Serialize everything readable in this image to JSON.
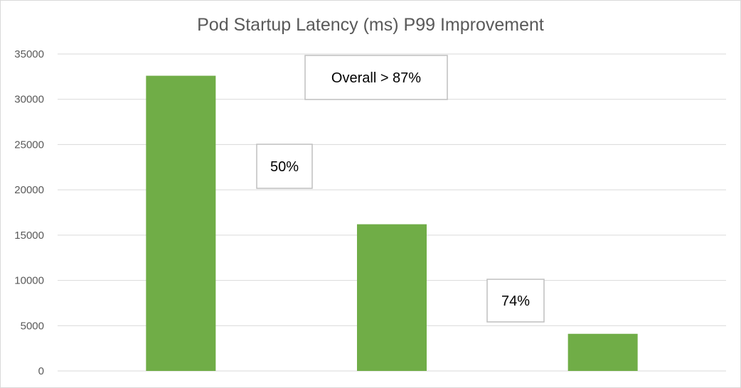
{
  "chart_data": {
    "type": "bar",
    "title": "Pod Startup Latency (ms) P99 Improvement",
    "categories": [
      "",
      "",
      ""
    ],
    "values": [
      32600,
      16200,
      4100
    ],
    "xlabel": "",
    "ylabel": "",
    "ylim": [
      0,
      35000
    ],
    "yticks": [
      0,
      5000,
      10000,
      15000,
      20000,
      25000,
      30000,
      35000
    ],
    "grid": true,
    "legend": "none",
    "bar_color": "#70ad47",
    "annotations": [
      {
        "text": "Overall > 87%"
      },
      {
        "text": "50%"
      },
      {
        "text": "74%"
      }
    ]
  }
}
